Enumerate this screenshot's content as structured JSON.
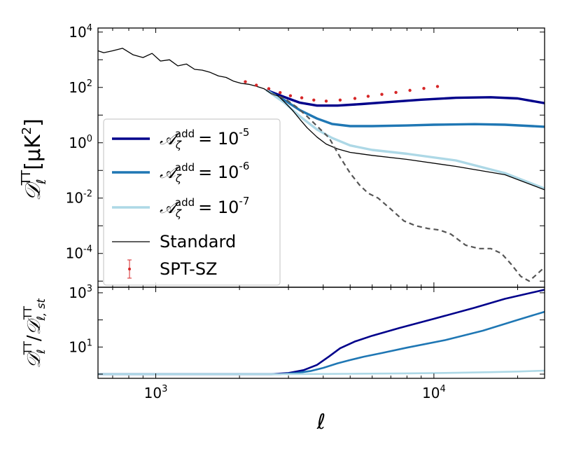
{
  "chart_data": [
    {
      "panel": "top",
      "type": "line",
      "ylabel_parts": {
        "main": "𝒟",
        "sub": "ℓ",
        "sup": "TT",
        "unit": "[μK",
        "unit_sup": "2",
        "unit_end": "]"
      },
      "xscale": "log",
      "yscale": "log",
      "xlim": [
        620,
        25000
      ],
      "ylim": [
        6e-06,
        14000
      ],
      "yticks": [
        0.0001,
        0.01,
        1,
        100,
        10000
      ],
      "ytick_labels": [
        {
          "base": "10",
          "exp": "-4"
        },
        {
          "base": "10",
          "exp": "-2"
        },
        {
          "base": "10",
          "exp": "0"
        },
        {
          "base": "10",
          "exp": "2"
        },
        {
          "base": "10",
          "exp": "4"
        }
      ],
      "legend_position": "lower-left",
      "legend": [
        {
          "label": "𝒜",
          "sub": "ζ",
          "sup": "add",
          "value": "= 10",
          "exp": "-5",
          "series": "A1e-5"
        },
        {
          "label": "𝒜",
          "sub": "ζ",
          "sup": "add",
          "value": "= 10",
          "exp": "-6",
          "series": "A1e-6"
        },
        {
          "label": "𝒜",
          "sub": "ζ",
          "sup": "add",
          "value": "= 10",
          "exp": "-7",
          "series": "A1e-7"
        },
        {
          "label": "Standard",
          "series": "Standard"
        },
        {
          "label": "SPT-SZ",
          "series": "SPT-SZ"
        }
      ],
      "series": [
        {
          "name": "A1e-5",
          "color": "#00008b",
          "width": 3.4,
          "x": [
            2500,
            2900,
            3300,
            3800,
            4500,
            5500,
            7000,
            9000,
            12000,
            16000,
            20000,
            25000
          ],
          "y": [
            80,
            45,
            28,
            22,
            22,
            25,
            30,
            36,
            42,
            44,
            40,
            27
          ]
        },
        {
          "name": "A1e-6",
          "color": "#1f77b4",
          "width": 3.4,
          "x": [
            2500,
            2900,
            3300,
            3800,
            4300,
            5000,
            6000,
            8000,
            10000,
            14000,
            18000,
            25000
          ],
          "y": [
            80,
            35,
            15,
            7.5,
            4.8,
            4.0,
            4.0,
            4.2,
            4.5,
            4.7,
            4.5,
            3.8
          ]
        },
        {
          "name": "A1e-7",
          "color": "#add8e6",
          "width": 3.4,
          "x": [
            2500,
            2900,
            3300,
            3800,
            4300,
            5000,
            6000,
            8000,
            12000,
            18000,
            25000
          ],
          "y": [
            80,
            28,
            9,
            3.0,
            1.5,
            0.8,
            0.55,
            0.4,
            0.23,
            0.08,
            0.022
          ]
        },
        {
          "name": "Standard",
          "color": "#000000",
          "width": 1.3,
          "x": [
            620,
            650,
            700,
            760,
            830,
            900,
            970,
            1040,
            1120,
            1200,
            1290,
            1380,
            1470,
            1570,
            1680,
            1790,
            1900,
            2030,
            2160,
            2300,
            2450,
            2600,
            2750,
            2900,
            3100,
            3300,
            3500,
            3800,
            4100,
            4500,
            5000,
            6000,
            8000,
            12000,
            18000,
            25000
          ],
          "y": [
            2100,
            1800,
            2100,
            2600,
            1500,
            1200,
            1700,
            900,
            1000,
            600,
            700,
            450,
            420,
            350,
            260,
            230,
            170,
            140,
            130,
            110,
            90,
            60,
            50,
            30,
            15,
            7,
            3.5,
            1.6,
            0.9,
            0.6,
            0.45,
            0.35,
            0.25,
            0.14,
            0.07,
            0.02
          ]
        },
        {
          "name": "Primary",
          "color": "#555555",
          "width": 2.2,
          "dash": "7,5",
          "x": [
            2600,
            2900,
            3200,
            3500,
            3800,
            4200,
            4600,
            5000,
            5400,
            5800,
            6300,
            7000,
            7800,
            8600,
            9500,
            10500,
            11500,
            13000,
            14500,
            16000,
            17500,
            19000,
            20500,
            22000,
            23500,
            25000
          ],
          "y": [
            60,
            40,
            20,
            9,
            4,
            1.5,
            0.3,
            0.08,
            0.03,
            0.015,
            0.01,
            0.004,
            0.0015,
            0.001,
            0.0008,
            0.0007,
            0.0005,
            0.0002,
            0.00015,
            0.00015,
            0.0001,
            4e-05,
            1.5e-05,
            1e-05,
            1.8e-05,
            3.2e-05
          ]
        }
      ],
      "points": {
        "name": "SPT-SZ",
        "color": "#d62728",
        "x": [
          2100,
          2300,
          2550,
          2800,
          3050,
          3350,
          3700,
          4100,
          4600,
          5200,
          5800,
          6500,
          7300,
          8200,
          9200,
          10300
        ],
        "y": [
          160,
          120,
          90,
          65,
          50,
          42,
          35,
          32,
          35,
          40,
          48,
          56,
          66,
          78,
          92,
          108
        ]
      }
    },
    {
      "panel": "bottom",
      "type": "line",
      "xlabel": "ℓ",
      "ylabel_parts": {
        "num_main": "𝒟",
        "num_sub": "ℓ",
        "num_sup": "TT",
        "sep": "/",
        "den_main": "𝒟",
        "den_sub": "ℓ, st",
        "den_sup": "TT"
      },
      "xscale": "log",
      "yscale": "log",
      "xlim": [
        620,
        25000
      ],
      "ylim": [
        0.7,
        1600
      ],
      "xticks": [
        1000,
        10000
      ],
      "xtick_labels": [
        {
          "base": "10",
          "exp": "3"
        },
        {
          "base": "10",
          "exp": "4"
        }
      ],
      "yticks": [
        10,
        1000
      ],
      "ytick_labels": [
        {
          "base": "10",
          "exp": "1"
        },
        {
          "base": "10",
          "exp": "3"
        }
      ],
      "series": [
        {
          "name": "A1e-5",
          "color": "#00008b",
          "width": 2.6,
          "x": [
            620,
            2600,
            3000,
            3400,
            3800,
            4200,
            4600,
            5200,
            6000,
            7500,
            10000,
            14000,
            18000,
            25000
          ],
          "y": [
            1.0,
            1.0,
            1.1,
            1.4,
            2.2,
            4.5,
            9,
            16,
            26,
            50,
            110,
            280,
            600,
            1300
          ]
        },
        {
          "name": "A1e-6",
          "color": "#1f77b4",
          "width": 2.6,
          "x": [
            620,
            2800,
            3200,
            3600,
            4000,
            4500,
            5000,
            5600,
            6500,
            8000,
            11000,
            15000,
            20000,
            25000
          ],
          "y": [
            1.0,
            1.0,
            1.1,
            1.3,
            1.7,
            2.5,
            3.3,
            4.4,
            6,
            9.5,
            18,
            40,
            100,
            200
          ]
        },
        {
          "name": "A1e-7",
          "color": "#add8e6",
          "width": 2.6,
          "x": [
            620,
            3000,
            5000,
            8000,
            12000,
            16000,
            20000,
            25000
          ],
          "y": [
            1.0,
            1.0,
            1.03,
            1.07,
            1.12,
            1.18,
            1.25,
            1.35
          ]
        }
      ]
    }
  ]
}
